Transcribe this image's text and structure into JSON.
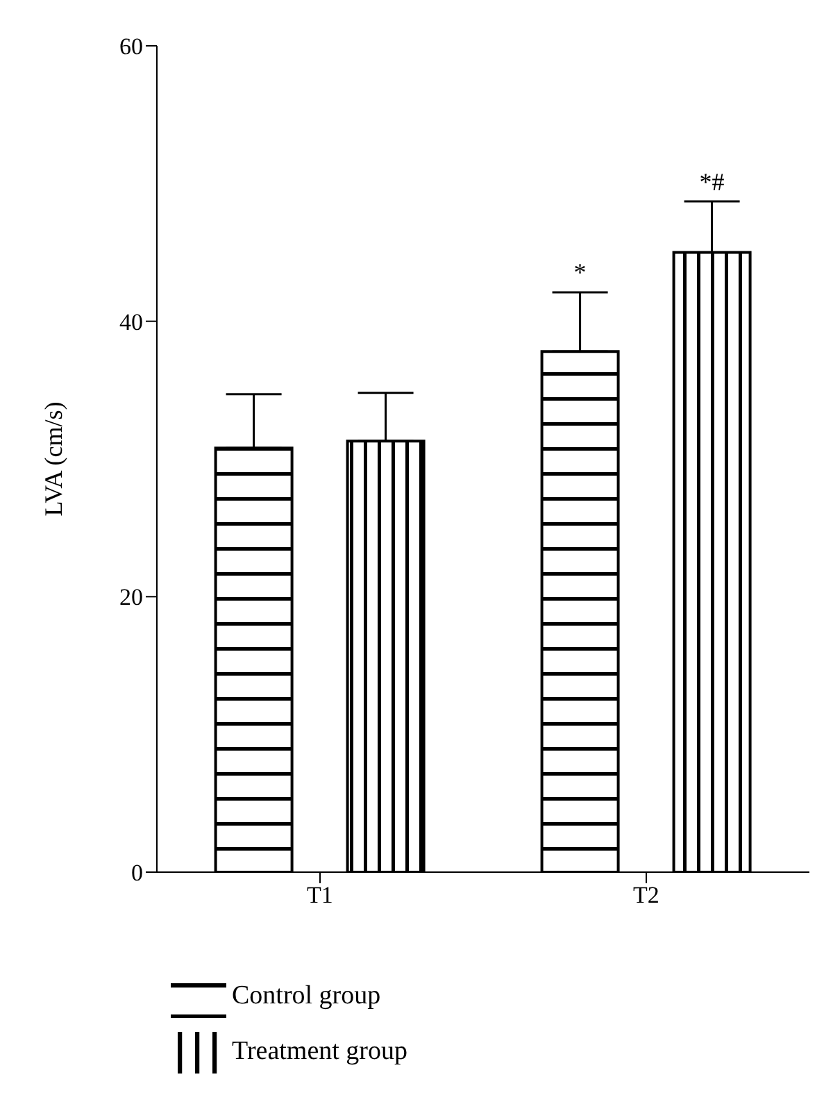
{
  "chart_data": {
    "type": "bar",
    "ylabel": "LVA (cm/s)",
    "categories": [
      "T1",
      "T2"
    ],
    "series": [
      {
        "name": "Control group",
        "color": "#000000",
        "values": [
          30.8,
          37.8
        ],
        "errors": [
          3.9,
          4.3
        ]
      },
      {
        "name": "Treatment group",
        "color": "#000000",
        "values": [
          31.3,
          45.0
        ],
        "errors": [
          3.5,
          3.7
        ]
      }
    ],
    "ylim": [
      0,
      60
    ],
    "yticks": [
      0,
      20,
      40,
      60
    ],
    "grid": false,
    "legend": "bottom left",
    "annotations": [
      "*",
      "*#"
    ]
  }
}
